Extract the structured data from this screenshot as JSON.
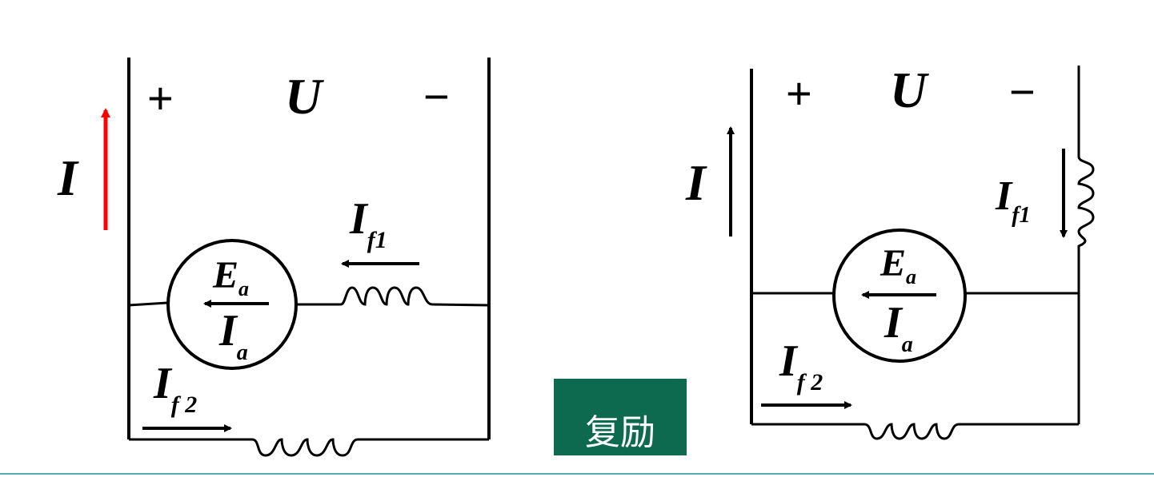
{
  "left_circuit": {
    "terminal_plus": "+",
    "terminal_voltage": "U",
    "terminal_minus": "−",
    "line_current": "I",
    "armature_emf": "E",
    "armature_emf_sub": "a",
    "armature_current": "I",
    "armature_current_sub": "a",
    "series_field_current": "I",
    "series_field_current_sub": "f1",
    "shunt_field_current": "I",
    "shunt_field_current_sub": "f 2",
    "line_current_arrow_color": "#ff0000"
  },
  "right_circuit": {
    "terminal_plus": "+",
    "terminal_voltage": "U",
    "terminal_minus": "−",
    "line_current": "I",
    "armature_emf": "E",
    "armature_emf_sub": "a",
    "armature_current": "I",
    "armature_current_sub": "a",
    "series_field_current": "I",
    "series_field_current_sub": "f1",
    "shunt_field_current": "I",
    "shunt_field_current_sub": "f 2"
  },
  "badge": {
    "label": "复励",
    "color": "#0e6a4f"
  },
  "rule_color": "#5aa9b8"
}
